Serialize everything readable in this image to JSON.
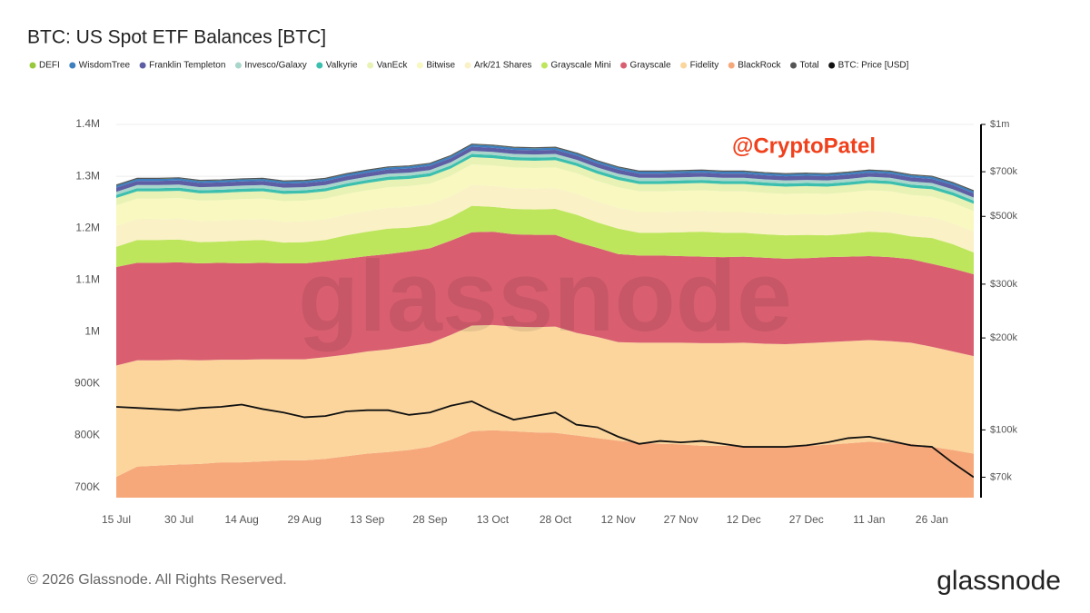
{
  "chart_data": {
    "type": "stacked_area",
    "title": "BTC: US Spot ETF Balances [BTC]",
    "annotation": "@CryptoPatel",
    "watermark": "glassnode",
    "footer": "© 2026 Glassnode. All Rights Reserved.",
    "logo": "glassnode",
    "categories": [
      "15 Jul",
      null,
      null,
      "30 Jul",
      null,
      null,
      "14 Aug",
      null,
      null,
      "29 Aug",
      null,
      null,
      "13 Sep",
      null,
      null,
      "28 Sep",
      null,
      null,
      "13 Oct",
      null,
      null,
      "28 Oct",
      null,
      null,
      "12 Nov",
      null,
      null,
      "27 Nov",
      null,
      null,
      "12 Dec",
      null,
      null,
      "27 Dec",
      null,
      null,
      "11 Jan",
      null,
      null,
      "26 Jan",
      null,
      null
    ],
    "ylim": [
      680000,
      1400000
    ],
    "yticks": [
      {
        "value": 700000,
        "label": "700K"
      },
      {
        "value": 800000,
        "label": "800K"
      },
      {
        "value": 900000,
        "label": "900K"
      },
      {
        "value": 1000000,
        "label": "1M"
      },
      {
        "value": 1100000,
        "label": "1.1M"
      },
      {
        "value": 1200000,
        "label": "1.2M"
      },
      {
        "value": 1300000,
        "label": "1.3M"
      },
      {
        "value": 1400000,
        "label": "1.4M"
      }
    ],
    "y2lim": [
      60000,
      1000000
    ],
    "y2log": true,
    "y2ticks": [
      {
        "value": 70000,
        "label": "$70k"
      },
      {
        "value": 100000,
        "label": "$100k"
      },
      {
        "value": 200000,
        "label": "$200k"
      },
      {
        "value": 300000,
        "label": "$300k"
      },
      {
        "value": 500000,
        "label": "$500k"
      },
      {
        "value": 700000,
        "label": "$700k"
      },
      {
        "value": 1000000,
        "label": "$1m"
      }
    ],
    "grid": true,
    "series": [
      {
        "name": "DEFI",
        "color": "#98c83c",
        "values": [
          1000,
          1000,
          1000,
          1000,
          1000,
          1000,
          1000,
          1000,
          1000,
          1000,
          1000,
          1000,
          1000,
          1000,
          1000,
          1000,
          1000,
          1000,
          1000,
          1000,
          1000,
          1000,
          1000,
          1000,
          1000,
          1000,
          1000,
          1000,
          1000,
          1000,
          1000,
          1000,
          1000,
          1000,
          1000,
          1000,
          1000,
          1000,
          1000,
          1000,
          1000,
          1000
        ]
      },
      {
        "name": "WisdomTree",
        "color": "#3d7fbf",
        "values": [
          4000,
          4000,
          4000,
          4000,
          4000,
          4000,
          4000,
          4000,
          4000,
          4000,
          4000,
          4000,
          4000,
          4000,
          4000,
          4000,
          4000,
          4000,
          4000,
          4000,
          4000,
          4000,
          4000,
          4000,
          4000,
          4000,
          4000,
          4000,
          4000,
          4000,
          4000,
          4000,
          4000,
          4000,
          4000,
          4000,
          4000,
          4000,
          4000,
          4000,
          4000,
          4000
        ]
      },
      {
        "name": "Franklin Templeton",
        "color": "#5d5ea3",
        "values": [
          8000,
          8000,
          8000,
          8000,
          8000,
          8000,
          8000,
          8000,
          8000,
          8000,
          8000,
          8000,
          8000,
          8000,
          8000,
          8000,
          8000,
          8000,
          8000,
          8000,
          8000,
          8000,
          8000,
          8000,
          8000,
          8000,
          8000,
          8000,
          8000,
          8000,
          8000,
          8000,
          8000,
          8000,
          8000,
          8000,
          8000,
          8000,
          8000,
          8000,
          8000,
          8000
        ]
      },
      {
        "name": "Invesco/Galaxy",
        "color": "#a9d6cb",
        "values": [
          6000,
          6000,
          6000,
          6000,
          6000,
          6000,
          6000,
          6000,
          6000,
          6000,
          6000,
          6000,
          6000,
          6000,
          6000,
          6000,
          6000,
          6000,
          6000,
          6000,
          6000,
          6000,
          6000,
          6000,
          6000,
          6000,
          6000,
          6000,
          6000,
          6000,
          6000,
          6000,
          6000,
          6000,
          6000,
          6000,
          6000,
          6000,
          6000,
          6000,
          6000,
          6000
        ]
      },
      {
        "name": "Valkyrie",
        "color": "#3cbfae",
        "values": [
          6000,
          6000,
          6000,
          6000,
          6000,
          6000,
          6000,
          6000,
          6000,
          6000,
          6000,
          6000,
          6000,
          6000,
          6000,
          6000,
          6000,
          6000,
          6000,
          6000,
          6000,
          6000,
          6000,
          6000,
          6000,
          6000,
          6000,
          6000,
          6000,
          6000,
          6000,
          6000,
          6000,
          6000,
          6000,
          6000,
          6000,
          6000,
          6000,
          6000,
          6000,
          6000
        ]
      },
      {
        "name": "VanEck",
        "color": "#e8f2b4",
        "values": [
          14000,
          14000,
          14000,
          14000,
          14000,
          14000,
          14000,
          14000,
          14000,
          14000,
          14000,
          14000,
          14000,
          14000,
          14000,
          14000,
          14000,
          14000,
          14000,
          14000,
          14000,
          14000,
          14000,
          14000,
          14000,
          14000,
          14000,
          14000,
          14000,
          14000,
          14000,
          14000,
          14000,
          14000,
          14000,
          14000,
          14000,
          14000,
          14000,
          14000,
          14000,
          14000
        ]
      },
      {
        "name": "Bitwise",
        "color": "#f8f8c0",
        "values": [
          40000,
          40000,
          40000,
          40000,
          40000,
          40000,
          40000,
          40000,
          40000,
          40000,
          40000,
          40000,
          40000,
          40000,
          40000,
          40000,
          40000,
          40000,
          40000,
          40000,
          40000,
          40000,
          40000,
          40000,
          40000,
          40000,
          40000,
          40000,
          40000,
          40000,
          40000,
          40000,
          40000,
          40000,
          40000,
          40000,
          40000,
          40000,
          40000,
          40000,
          40000,
          40000
        ]
      },
      {
        "name": "Ark/21 Shares",
        "color": "#faf1c6",
        "values": [
          40000,
          40000,
          40000,
          40000,
          40000,
          40000,
          40000,
          40000,
          40000,
          40000,
          40000,
          40000,
          40000,
          40000,
          40000,
          40000,
          40000,
          40000,
          40000,
          40000,
          40000,
          40000,
          40000,
          40000,
          40000,
          40000,
          40000,
          40000,
          40000,
          40000,
          40000,
          40000,
          40000,
          40000,
          40000,
          40000,
          40000,
          40000,
          40000,
          40000,
          40000,
          40000
        ]
      },
      {
        "name": "Grayscale Mini",
        "color": "#bde65c",
        "values": [
          39000,
          44000,
          44000,
          44000,
          41000,
          41000,
          44000,
          44000,
          40000,
          41000,
          41000,
          45000,
          47000,
          49000,
          46000,
          45000,
          45000,
          51000,
          48000,
          49000,
          49000,
          50000,
          53000,
          49000,
          49000,
          44000,
          44000,
          46000,
          48000,
          47000,
          46000,
          45000,
          45000,
          45000,
          42000,
          44000,
          47000,
          47000,
          44000,
          50000,
          47000,
          42000
        ]
      },
      {
        "name": "Grayscale",
        "color": "#d95f70",
        "values": [
          190000,
          188000,
          188000,
          188000,
          187000,
          187000,
          186000,
          186000,
          185000,
          185000,
          185000,
          185000,
          184000,
          184000,
          183000,
          183000,
          182000,
          180000,
          180000,
          178000,
          178000,
          177000,
          175000,
          172000,
          170000,
          168000,
          168000,
          167000,
          167000,
          166000,
          166000,
          166000,
          165000,
          164000,
          164000,
          163000,
          162000,
          162000,
          161000,
          160000,
          160000,
          158000
        ]
      },
      {
        "name": "Fidelity",
        "color": "#fbd59c",
        "values": [
          215000,
          205000,
          203000,
          202000,
          200000,
          198000,
          198000,
          197000,
          195000,
          195000,
          196000,
          196000,
          197000,
          198000,
          200000,
          200000,
          202000,
          204000,
          203000,
          202000,
          203000,
          205000,
          198000,
          195000,
          190000,
          193000,
          195000,
          196000,
          198000,
          198000,
          199000,
          199000,
          198000,
          198000,
          198000,
          197000,
          196000,
          196000,
          195000,
          193000,
          190000,
          188000
        ]
      },
      {
        "name": "BlackRock",
        "color": "#f6a87a",
        "values": [
          720000,
          740000,
          742000,
          744000,
          745000,
          748000,
          748000,
          750000,
          752000,
          752000,
          755000,
          760000,
          765000,
          768000,
          772000,
          778000,
          792000,
          808000,
          810000,
          808000,
          806000,
          805000,
          800000,
          795000,
          790000,
          786000,
          784000,
          783000,
          780000,
          780000,
          780000,
          778000,
          778000,
          780000,
          782000,
          785000,
          788000,
          786000,
          784000,
          778000,
          772000,
          765000
        ]
      },
      {
        "name": "Total",
        "color": "#555555",
        "kind": "line",
        "values": [
          1283000,
          1296000,
          1296000,
          1297000,
          1292000,
          1293000,
          1295000,
          1296000,
          1291000,
          1292000,
          1296000,
          1305000,
          1312000,
          1318000,
          1320000,
          1325000,
          1340000,
          1362000,
          1360000,
          1356000,
          1355000,
          1356000,
          1345000,
          1330000,
          1318000,
          1310000,
          1310000,
          1311000,
          1312000,
          1310000,
          1310000,
          1307000,
          1305000,
          1306000,
          1305000,
          1308000,
          1312000,
          1310000,
          1303000,
          1300000,
          1288000,
          1272000
        ]
      },
      {
        "name": "BTC: Price [USD]",
        "color": "#111111",
        "kind": "line",
        "axis": "y2",
        "values": [
          119000,
          118000,
          117000,
          116000,
          118000,
          119000,
          121000,
          117000,
          114000,
          110000,
          111000,
          115000,
          116000,
          116000,
          112000,
          114000,
          120000,
          124000,
          115000,
          108000,
          111000,
          114000,
          104000,
          102000,
          95000,
          90000,
          92000,
          91000,
          92000,
          90000,
          88000,
          88000,
          88000,
          89000,
          91000,
          94000,
          95000,
          92000,
          89000,
          88000,
          78000,
          70000
        ]
      }
    ]
  }
}
